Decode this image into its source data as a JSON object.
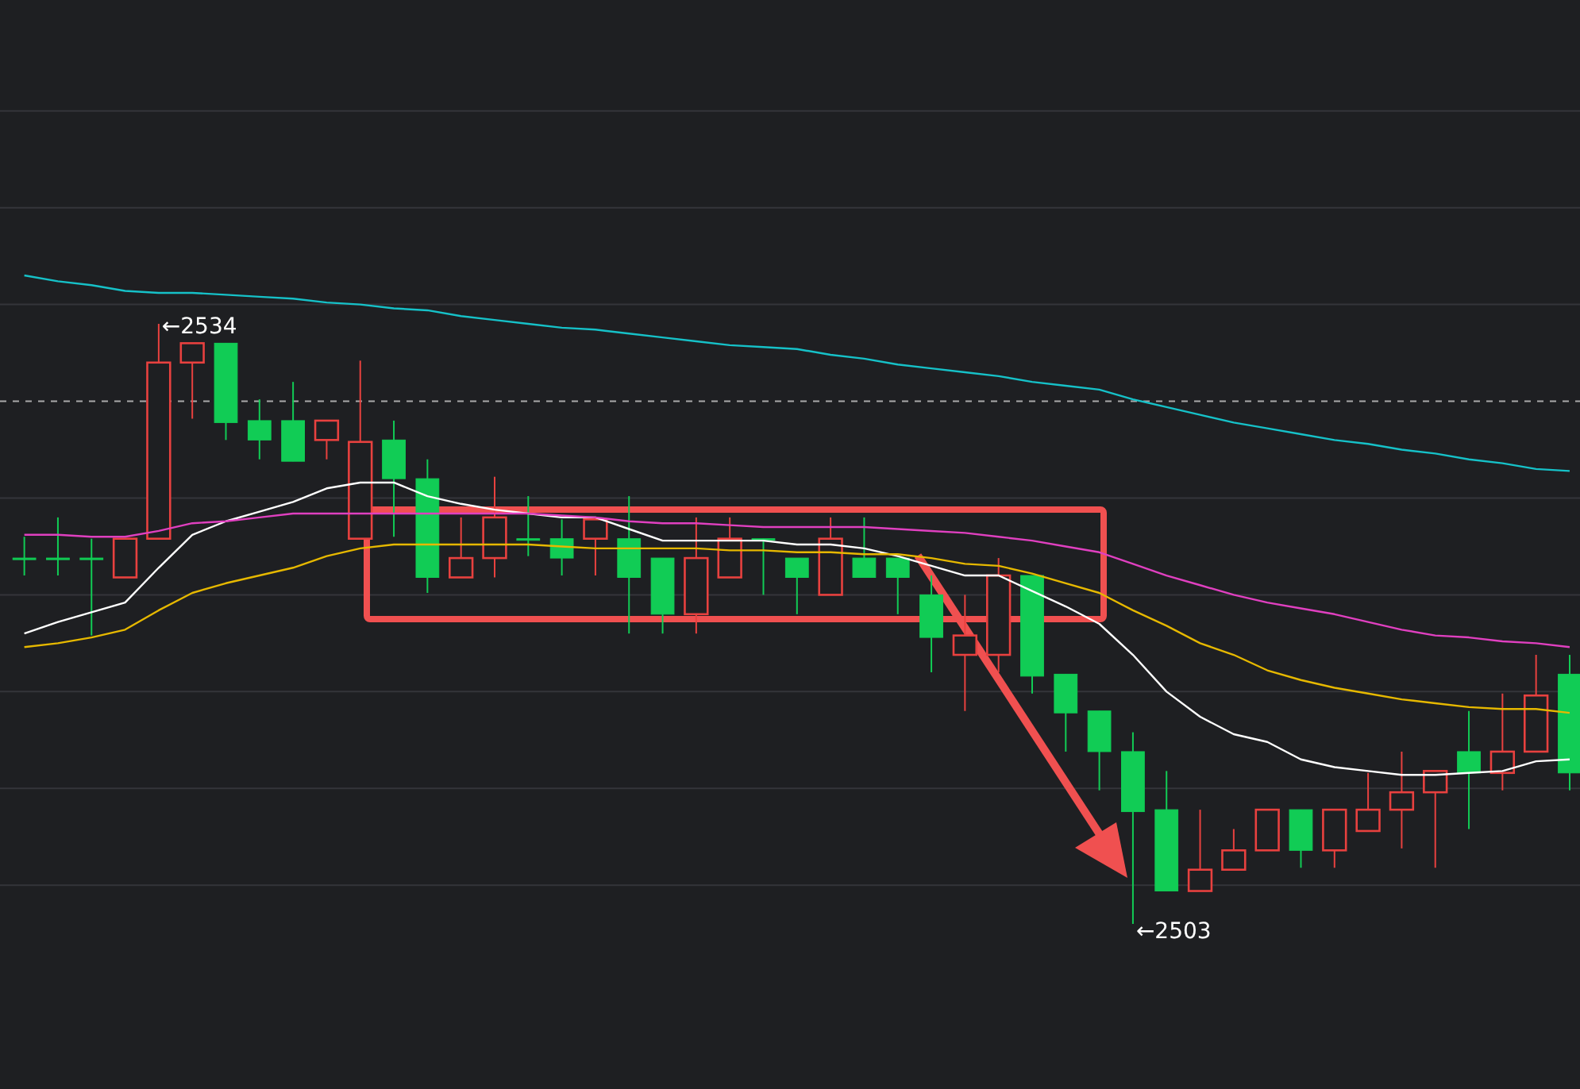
{
  "chart_data": {
    "type": "candlestick",
    "categories": [
      null,
      null,
      null,
      null,
      null,
      null,
      null,
      null,
      null,
      null,
      null,
      null,
      null,
      null,
      null,
      null,
      null,
      null,
      null,
      null,
      null,
      null,
      null,
      null,
      null,
      null,
      null,
      null,
      null,
      null,
      null,
      null,
      null,
      null,
      null,
      null,
      null,
      null,
      null,
      null,
      null,
      null,
      null,
      null,
      null,
      null,
      null
    ],
    "ohlc": [
      [
        2521.9,
        2523.0,
        2521.0,
        2521.9
      ],
      [
        2521.9,
        2524.0,
        2521.0,
        2521.9
      ],
      [
        2521.9,
        2522.9,
        2517.9,
        2521.9
      ],
      [
        2520.9,
        2522.9,
        2520.9,
        2522.9
      ],
      [
        2522.9,
        2534.0,
        2522.9,
        2532.0
      ],
      [
        2532.0,
        2533.0,
        2529.1,
        2533.0
      ],
      [
        2533.0,
        2533.0,
        2528.0,
        2528.9
      ],
      [
        2529.0,
        2530.1,
        2527.0,
        2528.0
      ],
      [
        2529.0,
        2531.0,
        2526.9,
        2526.9
      ],
      [
        2528.0,
        2529.0,
        2527.0,
        2529.0
      ],
      [
        2522.9,
        2532.1,
        2522.9,
        2527.9
      ],
      [
        2528.0,
        2529.0,
        2523.0,
        2526.0
      ],
      [
        2526.0,
        2527.0,
        2520.1,
        2520.9
      ],
      [
        2520.9,
        2524.0,
        2520.9,
        2521.9
      ],
      [
        2521.9,
        2526.1,
        2520.9,
        2524.0
      ],
      [
        2522.9,
        2525.1,
        2522.0,
        2522.9
      ],
      [
        2522.9,
        2523.9,
        2521.0,
        2521.9
      ],
      [
        2522.9,
        2523.9,
        2521.0,
        2523.9
      ],
      [
        2522.9,
        2525.1,
        2518.0,
        2520.9
      ],
      [
        2521.9,
        2521.9,
        2518.0,
        2519.0
      ],
      [
        2519.0,
        2524.0,
        2518.0,
        2521.9
      ],
      [
        2520.9,
        2524.0,
        2520.9,
        2522.9
      ],
      [
        2522.9,
        2522.9,
        2520.0,
        2522.9
      ],
      [
        2521.9,
        2521.9,
        2519.0,
        2520.9
      ],
      [
        2520.0,
        2524.0,
        2520.0,
        2522.9
      ],
      [
        2521.9,
        2524.0,
        2520.9,
        2520.9
      ],
      [
        2521.9,
        2521.9,
        2519.0,
        2520.9
      ],
      [
        2520.0,
        2521.0,
        2516.0,
        2517.8
      ],
      [
        2516.9,
        2520.0,
        2514.0,
        2517.9
      ],
      [
        2516.9,
        2521.9,
        2516.0,
        2521.0
      ],
      [
        2521.0,
        2521.0,
        2514.9,
        2515.8
      ],
      [
        2515.9,
        2515.9,
        2511.9,
        2513.9
      ],
      [
        2514.0,
        2514.0,
        2509.9,
        2511.9
      ],
      [
        2511.9,
        2512.9,
        2503.0,
        2508.8
      ],
      [
        2508.9,
        2510.9,
        2504.7,
        2504.7
      ],
      [
        2504.7,
        2508.9,
        2504.7,
        2505.8
      ],
      [
        2505.8,
        2507.9,
        2505.8,
        2506.8
      ],
      [
        2506.8,
        2508.9,
        2506.8,
        2508.9
      ],
      [
        2508.9,
        2508.9,
        2505.9,
        2506.8
      ],
      [
        2506.8,
        2508.9,
        2505.9,
        2508.9
      ],
      [
        2507.8,
        2510.8,
        2507.8,
        2508.9
      ],
      [
        2508.9,
        2511.9,
        2506.9,
        2509.8
      ],
      [
        2509.8,
        2510.9,
        2505.9,
        2510.9
      ],
      [
        2511.9,
        2514.0,
        2507.9,
        2510.8
      ],
      [
        2510.8,
        2514.9,
        2509.9,
        2511.9
      ],
      [
        2511.9,
        2516.9,
        2511.9,
        2514.8
      ],
      [
        2515.9,
        2516.9,
        2509.9,
        2510.8
      ]
    ],
    "colors": [
      "#11cc55",
      "#11cc55",
      "#11cc55",
      "#e8413f",
      "#e8413f",
      "#e8413f",
      "#11cc55",
      "#11cc55",
      "#11cc55",
      "#e8413f",
      "#e8413f",
      "#11cc55",
      "#11cc55",
      "#e8413f",
      "#e8413f",
      "#11cc55",
      "#11cc55",
      "#e8413f",
      "#11cc55",
      "#11cc55",
      "#e8413f",
      "#e8413f",
      "#11cc55",
      "#11cc55",
      "#e8413f",
      "#11cc55",
      "#11cc55",
      "#11cc55",
      "#e8413f",
      "#e8413f",
      "#11cc55",
      "#11cc55",
      "#11cc55",
      "#11cc55",
      "#11cc55",
      "#e8413f",
      "#e8413f",
      "#e8413f",
      "#11cc55",
      "#e8413f",
      "#e8413f",
      "#e8413f",
      "#e8413f",
      "#11cc55",
      "#e8413f",
      "#e8413f",
      "#11cc55"
    ],
    "series": [
      {
        "type": "line",
        "color": "#ffffff",
        "values": [
          2518.0,
          2518.6,
          2519.1,
          2519.6,
          2521.4,
          2523.1,
          2523.8,
          2524.3,
          2524.8,
          2525.5,
          2525.8,
          2525.8,
          2525.1,
          2524.7,
          2524.4,
          2524.2,
          2524.0,
          2524.0,
          2523.4,
          2522.8,
          2522.8,
          2522.8,
          2522.8,
          2522.6,
          2522.6,
          2522.4,
          2522.0,
          2521.5,
          2521.0,
          2521.0,
          2520.2,
          2519.4,
          2518.5,
          2516.9,
          2515.0,
          2513.7,
          2512.8,
          2512.4,
          2511.5,
          2511.1,
          2510.9,
          2510.7,
          2510.7,
          2510.8,
          2510.9,
          2511.4,
          2511.5
        ]
      },
      {
        "type": "line",
        "color": "#e6b800",
        "values": [
          2517.3,
          2517.5,
          2517.8,
          2518.2,
          2519.2,
          2520.1,
          2520.6,
          2521.0,
          2521.4,
          2522.0,
          2522.4,
          2522.6,
          2522.6,
          2522.6,
          2522.6,
          2522.6,
          2522.5,
          2522.4,
          2522.4,
          2522.4,
          2522.4,
          2522.3,
          2522.3,
          2522.2,
          2522.2,
          2522.1,
          2522.1,
          2521.9,
          2521.6,
          2521.5,
          2521.1,
          2520.6,
          2520.1,
          2519.2,
          2518.4,
          2517.5,
          2516.9,
          2516.1,
          2515.6,
          2515.2,
          2514.9,
          2514.6,
          2514.4,
          2514.2,
          2514.1,
          2514.1,
          2513.9
        ]
      },
      {
        "type": "line",
        "color": "#e040c0",
        "values": [
          2523.1,
          2523.1,
          2523.0,
          2523.0,
          2523.3,
          2523.7,
          2523.8,
          2524.0,
          2524.2,
          2524.2,
          2524.2,
          2524.2,
          2524.2,
          2524.2,
          2524.2,
          2524.2,
          2524.1,
          2524.0,
          2523.8,
          2523.7,
          2523.7,
          2523.6,
          2523.5,
          2523.5,
          2523.5,
          2523.5,
          2523.4,
          2523.3,
          2523.2,
          2523.0,
          2522.8,
          2522.5,
          2522.2,
          2521.6,
          2521.0,
          2520.5,
          2520.0,
          2519.6,
          2519.3,
          2519.0,
          2518.6,
          2518.2,
          2517.9,
          2517.8,
          2517.6,
          2517.5,
          2517.3
        ]
      },
      {
        "type": "line",
        "color": "#16c1c8",
        "values": [
          2536.5,
          2536.2,
          2536.0,
          2535.7,
          2535.6,
          2535.6,
          2535.5,
          2535.4,
          2535.3,
          2535.1,
          2535.0,
          2534.8,
          2534.7,
          2534.4,
          2534.2,
          2534.0,
          2533.8,
          2533.7,
          2533.5,
          2533.3,
          2533.1,
          2532.9,
          2532.8,
          2532.7,
          2532.4,
          2532.2,
          2531.9,
          2531.7,
          2531.5,
          2531.3,
          2531.0,
          2530.8,
          2530.6,
          2530.1,
          2529.7,
          2529.3,
          2528.9,
          2528.6,
          2528.3,
          2528.0,
          2527.8,
          2527.5,
          2527.3,
          2527.0,
          2526.8,
          2526.5,
          2526.4
        ]
      }
    ],
    "yticks": [
      {
        "value": 2505,
        "label": null
      },
      {
        "value": 2510,
        "label": null
      },
      {
        "value": 2515,
        "label": null
      },
      {
        "value": 2520,
        "label": null
      },
      {
        "value": 2525,
        "label": null
      },
      {
        "value": 2535,
        "label": null
      },
      {
        "value": 2540,
        "label": null
      },
      {
        "value": 2545,
        "label": null
      }
    ],
    "grid": "y",
    "ref_lines": [
      {
        "axis": "y",
        "value": 2530,
        "color": "#aaaaaa",
        "line_style": "dashed"
      }
    ],
    "annotations": [
      "←2534",
      "←2503"
    ]
  }
}
